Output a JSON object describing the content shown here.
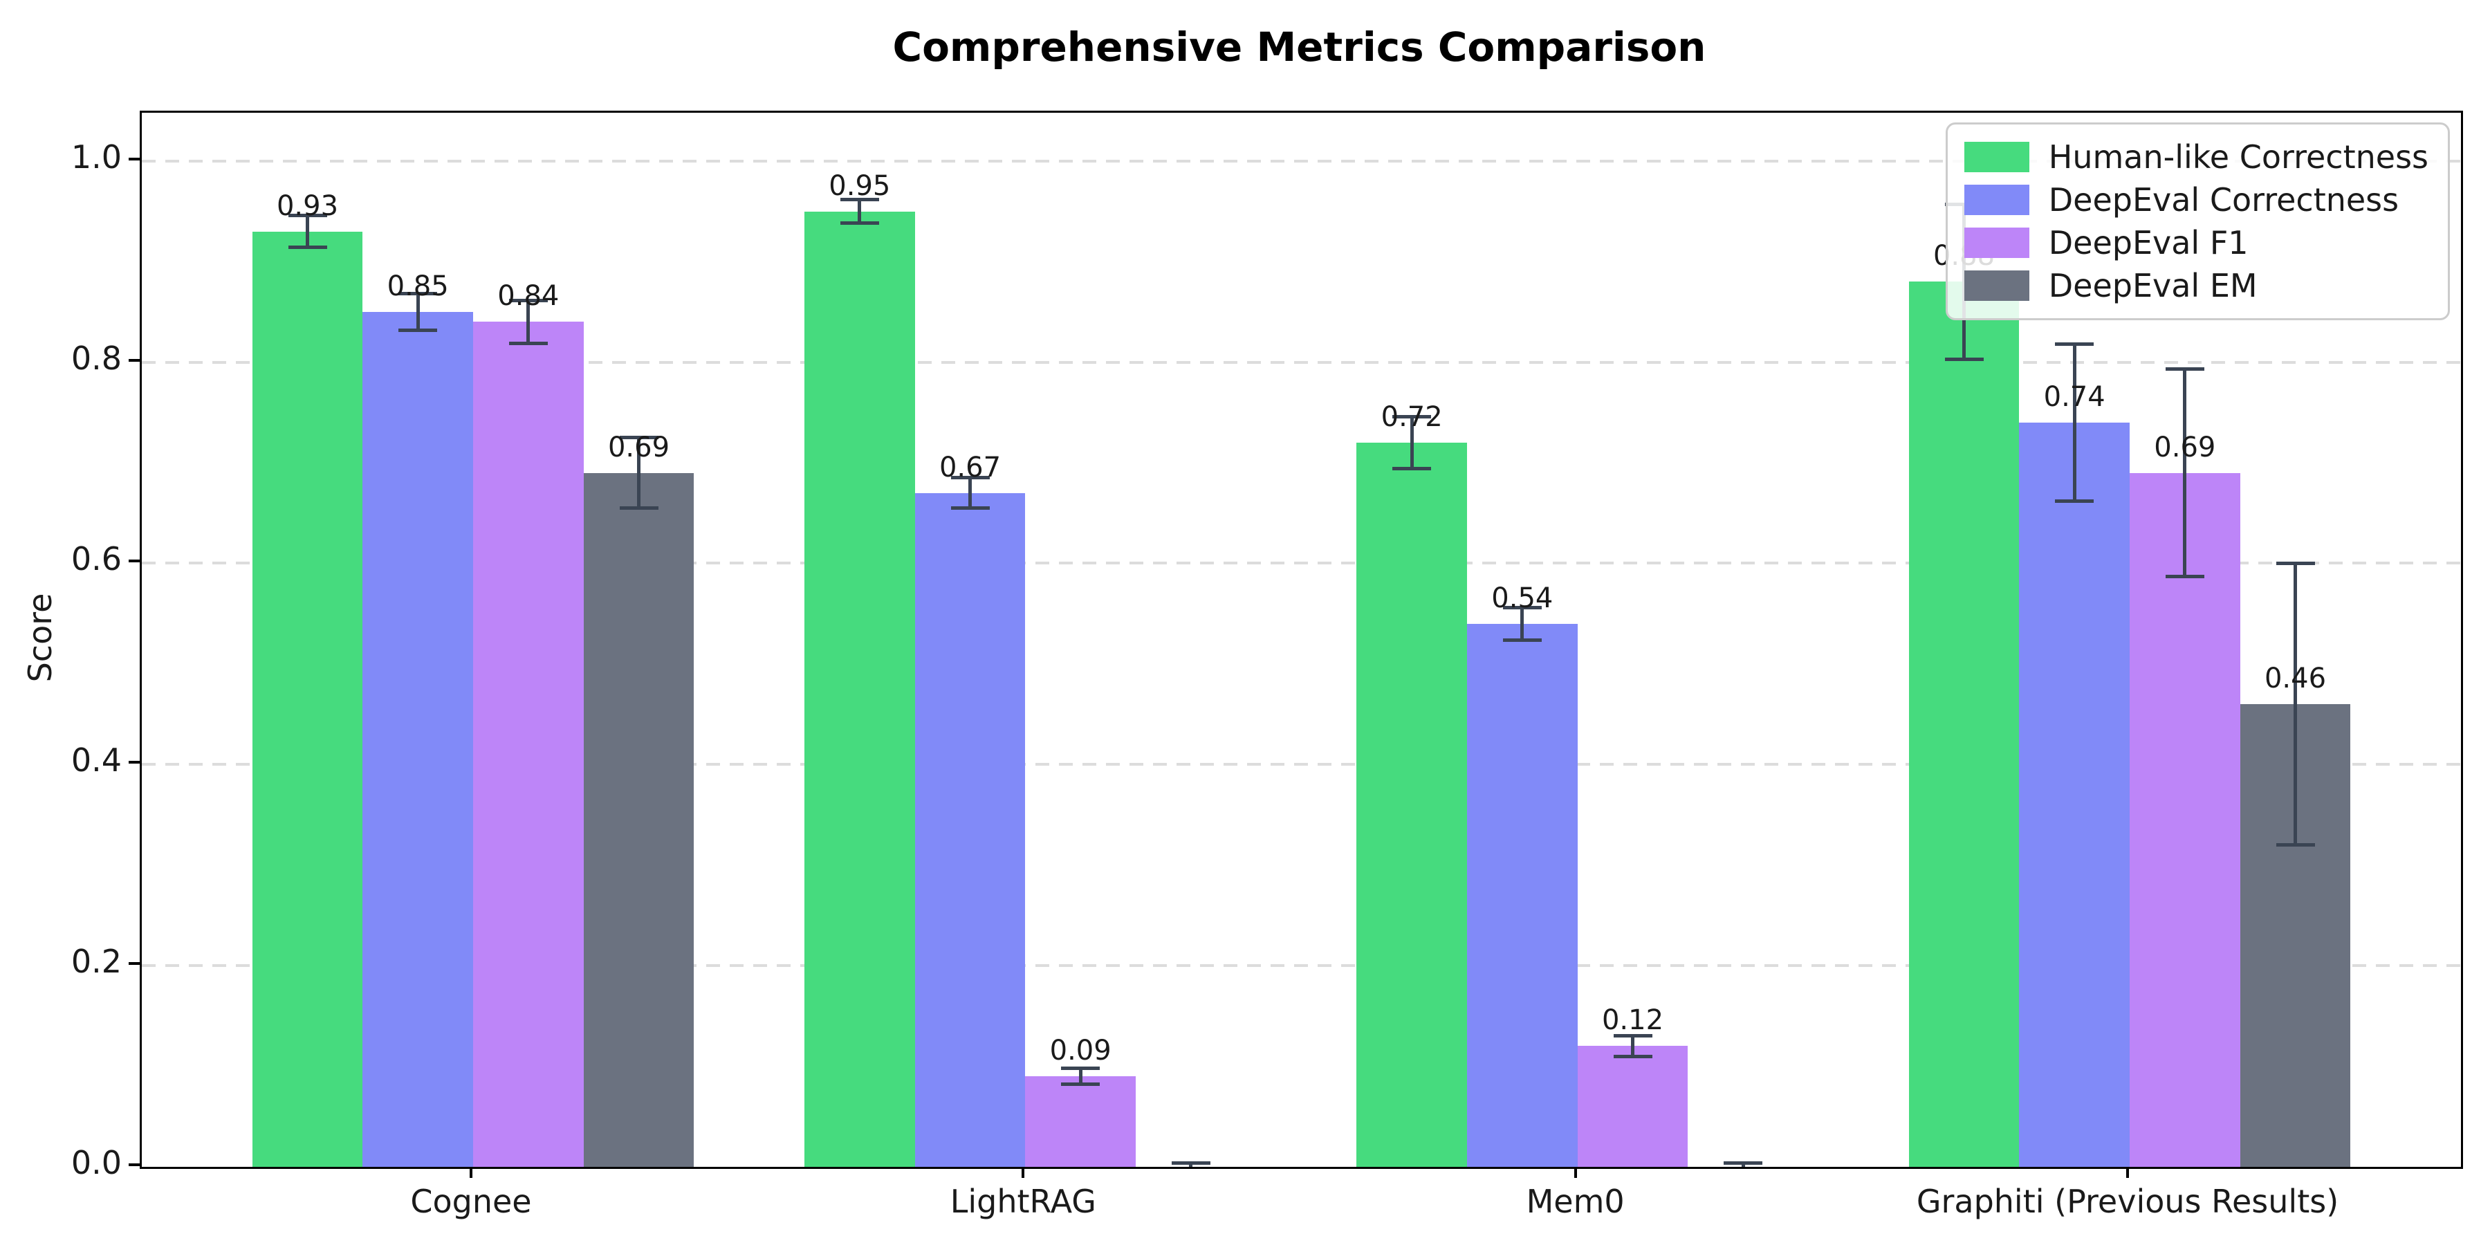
{
  "title": "Comprehensive Metrics Comparison",
  "chart_data": {
    "type": "bar",
    "title": "Comprehensive Metrics Comparison",
    "xlabel": "",
    "ylabel": "Score",
    "ylim": [
      0,
      1.048
    ],
    "yticks": [
      "0.0",
      "0.2",
      "0.4",
      "0.6",
      "0.8",
      "1.0"
    ],
    "grid": "horizontal-dashed",
    "legend_position": "upper-right",
    "categories": [
      "Cognee",
      "LightRAG",
      "Mem0",
      "Graphiti (Previous Results)"
    ],
    "series": [
      {
        "name": "Human-like Correctness",
        "color": "#46db7e",
        "values": [
          0.93,
          0.95,
          0.72,
          0.88
        ],
        "errors": [
          0.016,
          0.012,
          0.026,
          0.077
        ],
        "labels": [
          "0.93",
          "0.95",
          "0.72",
          "0.88"
        ]
      },
      {
        "name": "DeepEval Correctness",
        "color": "#818af8",
        "values": [
          0.85,
          0.67,
          0.54,
          0.74
        ],
        "errors": [
          0.018,
          0.015,
          0.016,
          0.078
        ],
        "labels": [
          "0.85",
          "0.67",
          "0.54",
          "0.74"
        ]
      },
      {
        "name": "DeepEval F1",
        "color": "#bd85f8",
        "values": [
          0.84,
          0.09,
          0.12,
          0.69
        ],
        "errors": [
          0.021,
          0.008,
          0.01,
          0.103
        ],
        "labels": [
          "0.84",
          "0.09",
          "0.12",
          "0.69"
        ]
      },
      {
        "name": "DeepEval EM",
        "color": "#6b7280",
        "values": [
          0.69,
          0.0,
          0.0,
          0.46
        ],
        "errors": [
          0.035,
          0.004,
          0.004,
          0.14
        ],
        "labels": [
          "0.69",
          null,
          null,
          "0.46"
        ]
      }
    ],
    "error_bar_color": "#3a4453"
  }
}
